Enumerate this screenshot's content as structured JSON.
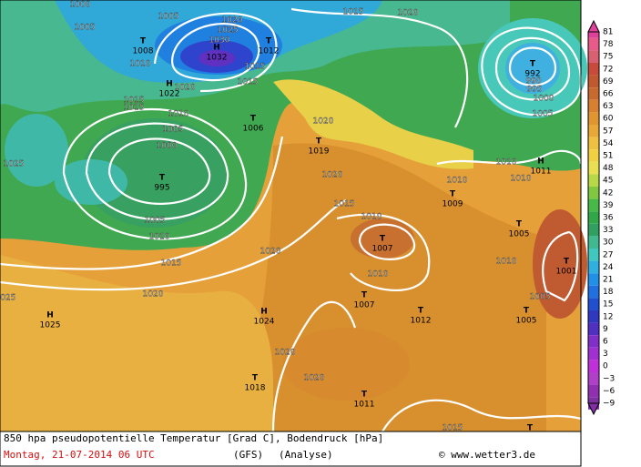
{
  "map": {
    "centers": [
      {
        "letter": "H",
        "value": "1032"
      },
      {
        "letter": "T",
        "value": "1012"
      },
      {
        "letter": "T",
        "value": "1008"
      },
      {
        "letter": "H",
        "value": "1022"
      },
      {
        "letter": "T",
        "value": "1006"
      },
      {
        "letter": "T",
        "value": "1019"
      },
      {
        "letter": "T",
        "value": "995"
      },
      {
        "letter": "T",
        "value": "992"
      },
      {
        "letter": "H",
        "value": "1011"
      },
      {
        "letter": "T",
        "value": "1009"
      },
      {
        "letter": "T",
        "value": "1007"
      },
      {
        "letter": "T",
        "value": "1005"
      },
      {
        "letter": "T",
        "value": "1001"
      },
      {
        "letter": "T",
        "value": "1007"
      },
      {
        "letter": "T",
        "value": "1012"
      },
      {
        "letter": "T",
        "value": "1005"
      },
      {
        "letter": "H",
        "value": "1024"
      },
      {
        "letter": "H",
        "value": "1025"
      },
      {
        "letter": "T",
        "value": "1018"
      },
      {
        "letter": "T",
        "value": "1011"
      },
      {
        "letter": "T"
      }
    ],
    "isobar_labels": [
      "1005",
      "1005",
      "1000",
      "1010",
      "1015",
      "1015",
      "1015",
      "1020",
      "1020",
      "1025",
      "1030",
      "990",
      "995",
      "1000",
      "1005",
      "1015",
      "1015",
      "1010",
      "1005",
      "1000",
      "1025",
      "1005",
      "1010",
      "1015",
      "1020",
      "1020",
      "1020",
      "1020",
      "1015",
      "1010",
      "1010",
      "1010",
      "1010",
      "1010",
      "1010",
      "1005",
      "1020",
      "1020",
      "1025",
      "1015",
      "1020"
    ]
  },
  "colorbar": {
    "labels": [
      "81",
      "78",
      "75",
      "72",
      "69",
      "66",
      "63",
      "60",
      "57",
      "54",
      "51",
      "48",
      "45",
      "42",
      "39",
      "36",
      "33",
      "30",
      "27",
      "24",
      "21",
      "18",
      "15",
      "12",
      "9",
      "6",
      "3",
      "0",
      "−3",
      "−6",
      "−9"
    ],
    "colors": [
      "#e0409a",
      "#e85a8a",
      "#d86070",
      "#c84a3a",
      "#c05830",
      "#c86a30",
      "#d88030",
      "#e09530",
      "#e8a838",
      "#f0c040",
      "#f0d040",
      "#e8e050",
      "#b8d848",
      "#80c840",
      "#48b848",
      "#30a848",
      "#30a060",
      "#40b890",
      "#40c8c0",
      "#30b0e0",
      "#2090e8",
      "#2070e0",
      "#2050d0",
      "#3038c0",
      "#5030c0",
      "#8030c8",
      "#a030d0",
      "#c030d8",
      "#b040c8",
      "#9030b0",
      "#8030a0"
    ]
  },
  "footer": {
    "title": "850 hpa pseudopotentielle Temperatur [Grad C], Bodendruck [hPa]",
    "date": "Montag, 21-07-2014  06 UTC",
    "model": "(GFS)",
    "run": "(Analyse)",
    "copyright": "© www.wetter3.de"
  }
}
